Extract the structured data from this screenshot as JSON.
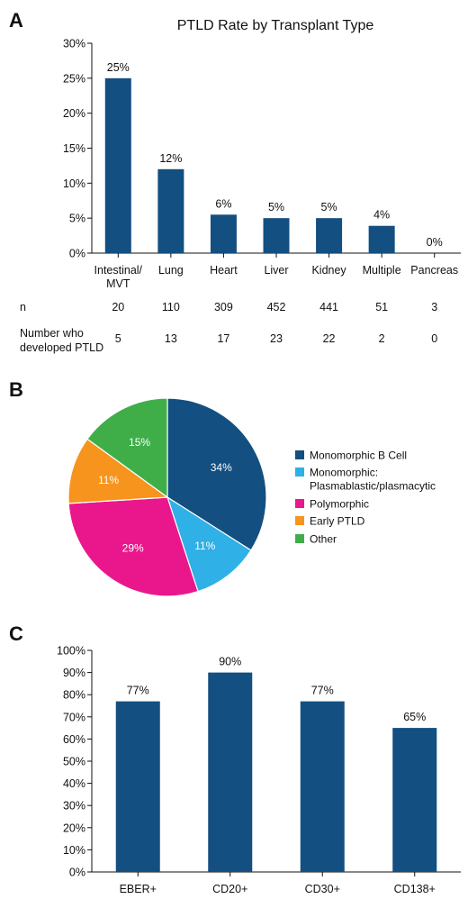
{
  "panels": {
    "a": {
      "letter": "A"
    },
    "b": {
      "letter": "B"
    },
    "c": {
      "letter": "C"
    }
  },
  "bar_color": "#134f80",
  "chart_data": [
    {
      "id": "A",
      "type": "bar",
      "title": "PTLD Rate by Transplant Type",
      "categories": [
        [
          "Intestinal/",
          "MVT"
        ],
        [
          "Lung"
        ],
        [
          "Heart"
        ],
        [
          "Liver"
        ],
        [
          "Kidney"
        ],
        [
          "Multiple"
        ],
        [
          "Pancreas"
        ]
      ],
      "values": [
        25,
        12,
        5.5,
        5,
        5,
        3.9,
        0
      ],
      "data_labels": [
        "25%",
        "12%",
        "6%",
        "5%",
        "5%",
        "4%",
        "0%"
      ],
      "ylim": [
        0,
        30
      ],
      "yticks": [
        "0%",
        "5%",
        "10%",
        "15%",
        "20%",
        "25%",
        "30%"
      ],
      "table": {
        "rows": [
          {
            "label": [
              "n"
            ],
            "values": [
              "20",
              "110",
              "309",
              "452",
              "441",
              "51",
              "3"
            ]
          },
          {
            "label": [
              "Number who",
              "developed PTLD"
            ],
            "values": [
              "5",
              "13",
              "17",
              "23",
              "22",
              "2",
              "0"
            ]
          }
        ]
      }
    },
    {
      "id": "B",
      "type": "pie",
      "slices": [
        {
          "label": [
            "Monomorphic B Cell"
          ],
          "value": 34,
          "display": "34%",
          "color": "#134f80"
        },
        {
          "label": [
            "Monomorphic:",
            "Plasmablastic/plasmacytic"
          ],
          "value": 11,
          "display": "11%",
          "color": "#2fb0e6"
        },
        {
          "label": [
            "Polymorphic"
          ],
          "value": 29,
          "display": "29%",
          "color": "#ea178c"
        },
        {
          "label": [
            "Early PTLD"
          ],
          "value": 11,
          "display": "11%",
          "color": "#f7941d"
        },
        {
          "label": [
            "Other"
          ],
          "value": 15,
          "display": "15%",
          "color": "#3fae49"
        }
      ]
    },
    {
      "id": "C",
      "type": "bar",
      "categories": [
        [
          "EBER+"
        ],
        [
          "CD20+"
        ],
        [
          "CD30+"
        ],
        [
          "CD138+"
        ]
      ],
      "values": [
        77,
        90,
        77,
        65
      ],
      "data_labels": [
        "77%",
        "90%",
        "77%",
        "65%"
      ],
      "ylim": [
        0,
        100
      ],
      "yticks": [
        "0%",
        "10%",
        "20%",
        "30%",
        "40%",
        "50%",
        "60%",
        "70%",
        "80%",
        "90%",
        "100%"
      ]
    }
  ]
}
